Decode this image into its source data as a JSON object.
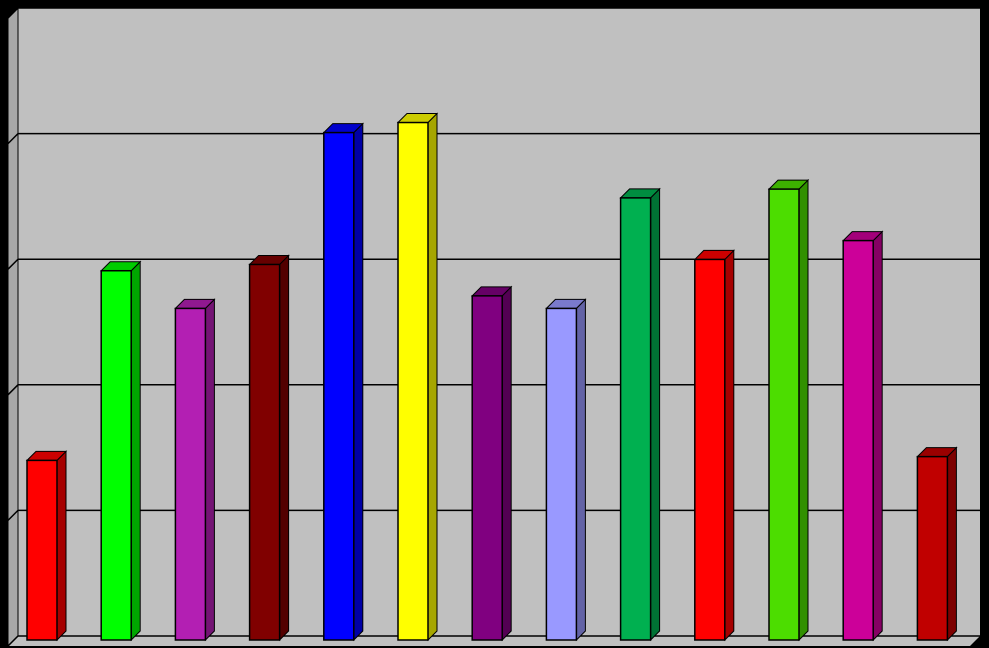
{
  "chart_data": {
    "type": "bar3d",
    "values": [
      1.43,
      2.94,
      2.64,
      2.99,
      4.04,
      4.12,
      2.74,
      2.64,
      3.52,
      3.03,
      3.59,
      3.18,
      1.46
    ],
    "colors": [
      "#ff0000",
      "#00ff00",
      "#b31fb3",
      "#800000",
      "#0000ff",
      "#ffff00",
      "#800080",
      "#9999ff",
      "#00b050",
      "#ff0000",
      "#4cdd00",
      "#cc0099",
      "#c00000"
    ],
    "ylim": [
      0,
      5
    ],
    "yticks": [
      0,
      1,
      2,
      3,
      4,
      5
    ],
    "grid": true
  }
}
